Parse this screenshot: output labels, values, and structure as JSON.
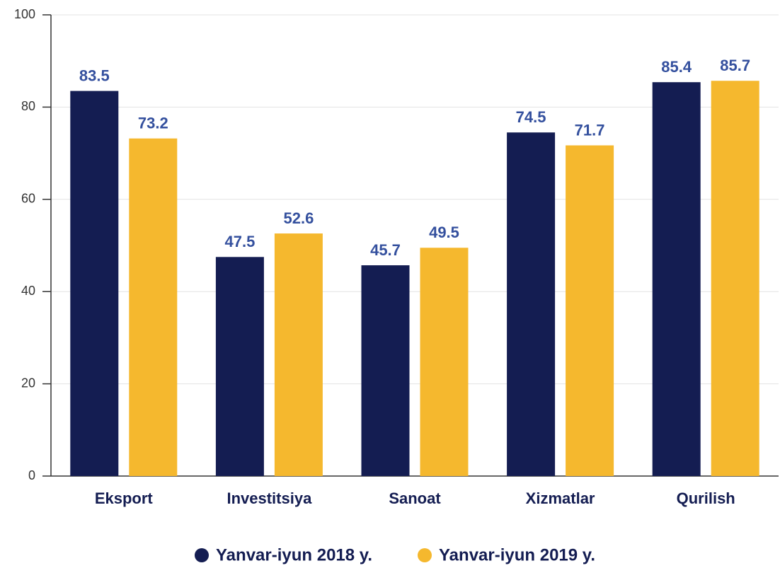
{
  "chart_data": {
    "type": "bar",
    "categories": [
      "Eksport",
      "Investitsiya",
      "Sanoat",
      "Xizmatlar",
      "Qurilish"
    ],
    "series": [
      {
        "name": "Yanvar-iyun 2018 y.",
        "color": "#141d52",
        "values": [
          83.5,
          47.5,
          45.7,
          74.5,
          85.4
        ]
      },
      {
        "name": "Yanvar-iyun 2019 y.",
        "color": "#f5b82e",
        "values": [
          73.2,
          52.6,
          49.5,
          71.7,
          85.7
        ]
      }
    ],
    "ylim": [
      0,
      100
    ],
    "yticks": [
      0,
      20,
      40,
      60,
      80,
      100
    ],
    "grid": true,
    "legend": "bottom"
  }
}
